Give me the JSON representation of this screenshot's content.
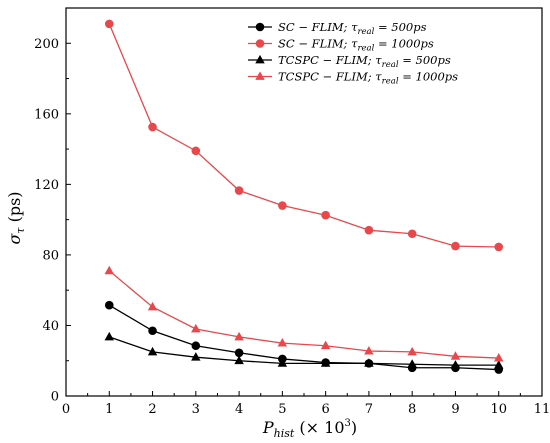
{
  "chart_data": {
    "type": "line",
    "xlabel": "P_hist (× 10³)",
    "xlabel_main": "P",
    "xlabel_sub": "hist",
    "xlabel_suffix": " (× 10",
    "xlabel_sup": "3",
    "xlabel_close": ")",
    "ylabel": "σ_τ (ps)",
    "ylabel_main": "σ",
    "ylabel_sub": "τ",
    "ylabel_suffix": " (ps)",
    "xlim": [
      0,
      11
    ],
    "ylim": [
      0,
      220
    ],
    "xticks": [
      "0",
      "1",
      "2",
      "3",
      "4",
      "5",
      "6",
      "7",
      "8",
      "9",
      "10",
      "11"
    ],
    "yticks": [
      "0",
      "40",
      "80",
      "120",
      "160",
      "200"
    ],
    "x": [
      1,
      2,
      3,
      4,
      5,
      6,
      7,
      8,
      9,
      10
    ],
    "legend_position": "top-right",
    "grid": false,
    "series": [
      {
        "name": "SC − FLIM; τreal = 500ps",
        "label_main": "SC − FLIM; τ",
        "label_sub": "real",
        "label_tail": " = 500ps",
        "color": "#000000",
        "marker": "circle",
        "values": [
          51.5,
          37,
          28.5,
          24.5,
          21,
          19,
          18.5,
          16,
          16,
          15
        ]
      },
      {
        "name": "SC − FLIM; τreal = 1000ps",
        "label_main": "SC − FLIM; τ",
        "label_sub": "real",
        "label_tail": " = 1000ps",
        "color": "#e8484b",
        "marker": "circle",
        "values": [
          211,
          152.5,
          139,
          116.5,
          108,
          102.5,
          94,
          92,
          85,
          84.5
        ]
      },
      {
        "name": "TCSPC − FLIM; τreal = 500ps",
        "label_main": "TCSPC − FLIM; τ",
        "label_sub": "real",
        "label_tail": " = 500ps",
        "color": "#000000",
        "marker": "triangle",
        "values": [
          33.5,
          25,
          22,
          20,
          18.5,
          18.5,
          18.5,
          18,
          17.5,
          17.5
        ]
      },
      {
        "name": "TCSPC − FLIM; τreal = 1000ps",
        "label_main": "TCSPC − FLIM; τ",
        "label_sub": "real",
        "label_tail": " = 1000ps",
        "color": "#e8484b",
        "marker": "triangle",
        "values": [
          71,
          50.5,
          38,
          33.5,
          30,
          28.5,
          25.5,
          25,
          22.5,
          21.5
        ]
      }
    ]
  }
}
